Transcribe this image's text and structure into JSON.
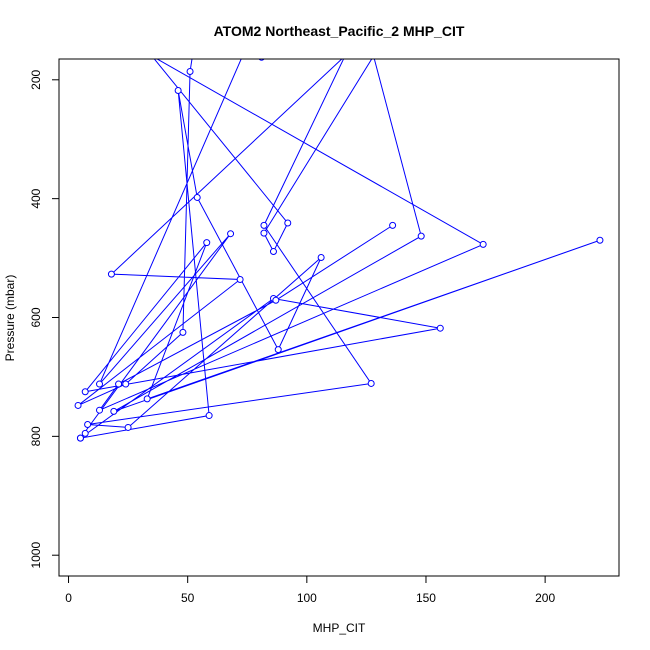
{
  "chart_data": {
    "type": "line",
    "title": "ATOM2 Northeast_Pacific_2 MHP_CIT",
    "xlabel": "MHP_CIT",
    "ylabel": "Pressure (mbar)",
    "xlim": [
      -4,
      231
    ],
    "ylim": [
      1035,
      165
    ],
    "y_reversed": true,
    "grid": false,
    "x_ticks": [
      0,
      50,
      100,
      150,
      200
    ],
    "y_ticks": [
      200,
      400,
      600,
      800,
      1000
    ],
    "series": [
      {
        "color": "#0000ff",
        "style": "line+open-circle",
        "clip_to_plot": true,
        "x": [
          7.0,
          5.0,
          59.0,
          46.0,
          54.0,
          88.0,
          106.0,
          25.0,
          8.0,
          127.0,
          82.0,
          116.0,
          18.0,
          72.0,
          4.0,
          24.0,
          48.0,
          51.0,
          52.0,
          81.0,
          73.0,
          13.0,
          68.0,
          5.0,
          86.0,
          156.0,
          7.0,
          58.0,
          33.0,
          223.0,
          19.0,
          148.0,
          128.0,
          82.0,
          86.0,
          92.0,
          35.0,
          174.0,
          13.0,
          21.0,
          87.0,
          136.0
        ],
        "y": [
          795,
          803,
          765,
          218,
          398,
          654,
          499,
          785,
          780,
          711,
          445,
          160,
          527,
          536,
          748,
          712,
          625,
          186,
          160,
          162,
          160,
          712,
          459,
          803,
          568,
          618,
          725,
          474,
          737,
          470,
          758,
          463,
          160,
          458,
          489,
          441,
          160,
          477,
          756,
          712,
          571,
          445
        ]
      }
    ]
  }
}
